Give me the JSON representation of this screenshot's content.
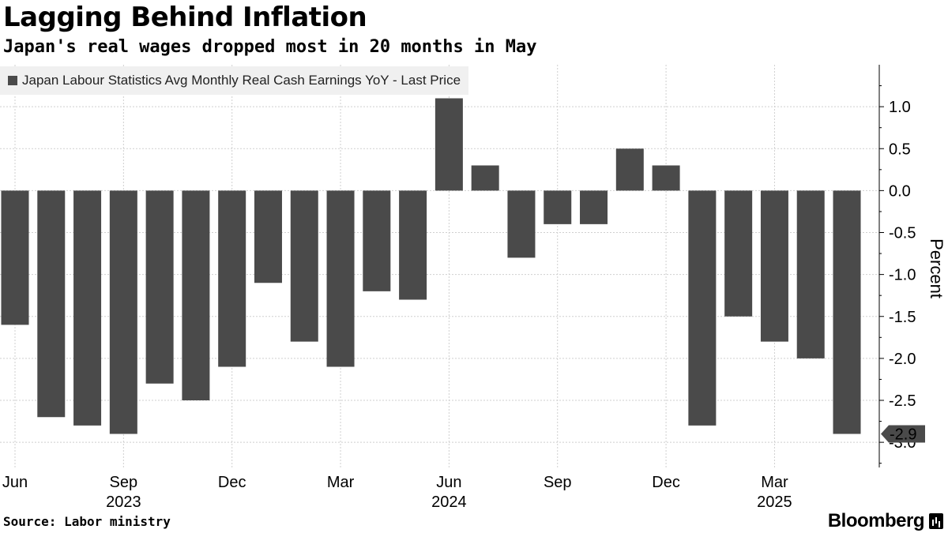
{
  "header": {
    "title": "Lagging Behind Inflation",
    "subtitle": "Japan's real wages dropped most in 20 months in May"
  },
  "footer": {
    "source": "Source: Labor ministry",
    "brand": "Bloomberg"
  },
  "colors": {
    "bar": "#4a4a4a",
    "grid": "#cfcfcf",
    "legend_bg": "#f0f0f0"
  },
  "chart_data": {
    "type": "bar",
    "title": "Lagging Behind Inflation",
    "subtitle": "Japan's real wages dropped most in 20 months in May",
    "ylabel": "Percent",
    "ylim": [
      -3.0,
      1.5
    ],
    "yticks": [
      1.0,
      0.5,
      0.0,
      -0.5,
      -1.0,
      -1.5,
      -2.0,
      -2.5,
      -3.0
    ],
    "ytick_labels": [
      "1.0",
      "0.5",
      "0.0",
      "-0.5",
      "-1.0",
      "-1.5",
      "-2.0",
      "-2.5",
      "-3.0"
    ],
    "grid": true,
    "legend_position": "top-left",
    "series": [
      {
        "name": "Japan Labour Statistics Avg Monthly Real Cash Earnings YoY - Last Price",
        "categories": [
          "Jun 2023",
          "Jul 2023",
          "Aug 2023",
          "Sep 2023",
          "Oct 2023",
          "Nov 2023",
          "Dec 2023",
          "Jan 2024",
          "Feb 2024",
          "Mar 2024",
          "Apr 2024",
          "May 2024",
          "Jun 2024",
          "Jul 2024",
          "Aug 2024",
          "Sep 2024",
          "Oct 2024",
          "Nov 2024",
          "Dec 2024",
          "Jan 2025",
          "Feb 2025",
          "Mar 2025",
          "Apr 2025",
          "May 2025"
        ],
        "values": [
          -1.6,
          -2.7,
          -2.8,
          -2.9,
          -2.3,
          -2.5,
          -2.1,
          -1.1,
          -1.8,
          -2.1,
          -1.2,
          -1.3,
          1.1,
          0.3,
          -0.8,
          -0.4,
          -0.4,
          0.5,
          0.3,
          -2.8,
          -1.5,
          -1.8,
          -2.0,
          -2.9
        ]
      }
    ],
    "x_tick_labels": [
      {
        "index": 0,
        "month": "Jun",
        "year": ""
      },
      {
        "index": 3,
        "month": "Sep",
        "year": "2023"
      },
      {
        "index": 6,
        "month": "Dec",
        "year": ""
      },
      {
        "index": 9,
        "month": "Mar",
        "year": ""
      },
      {
        "index": 12,
        "month": "Jun",
        "year": "2024"
      },
      {
        "index": 15,
        "month": "Sep",
        "year": ""
      },
      {
        "index": 18,
        "month": "Dec",
        "year": ""
      },
      {
        "index": 21,
        "month": "Mar",
        "year": "2025"
      }
    ],
    "last_value_label": "-2.9"
  }
}
